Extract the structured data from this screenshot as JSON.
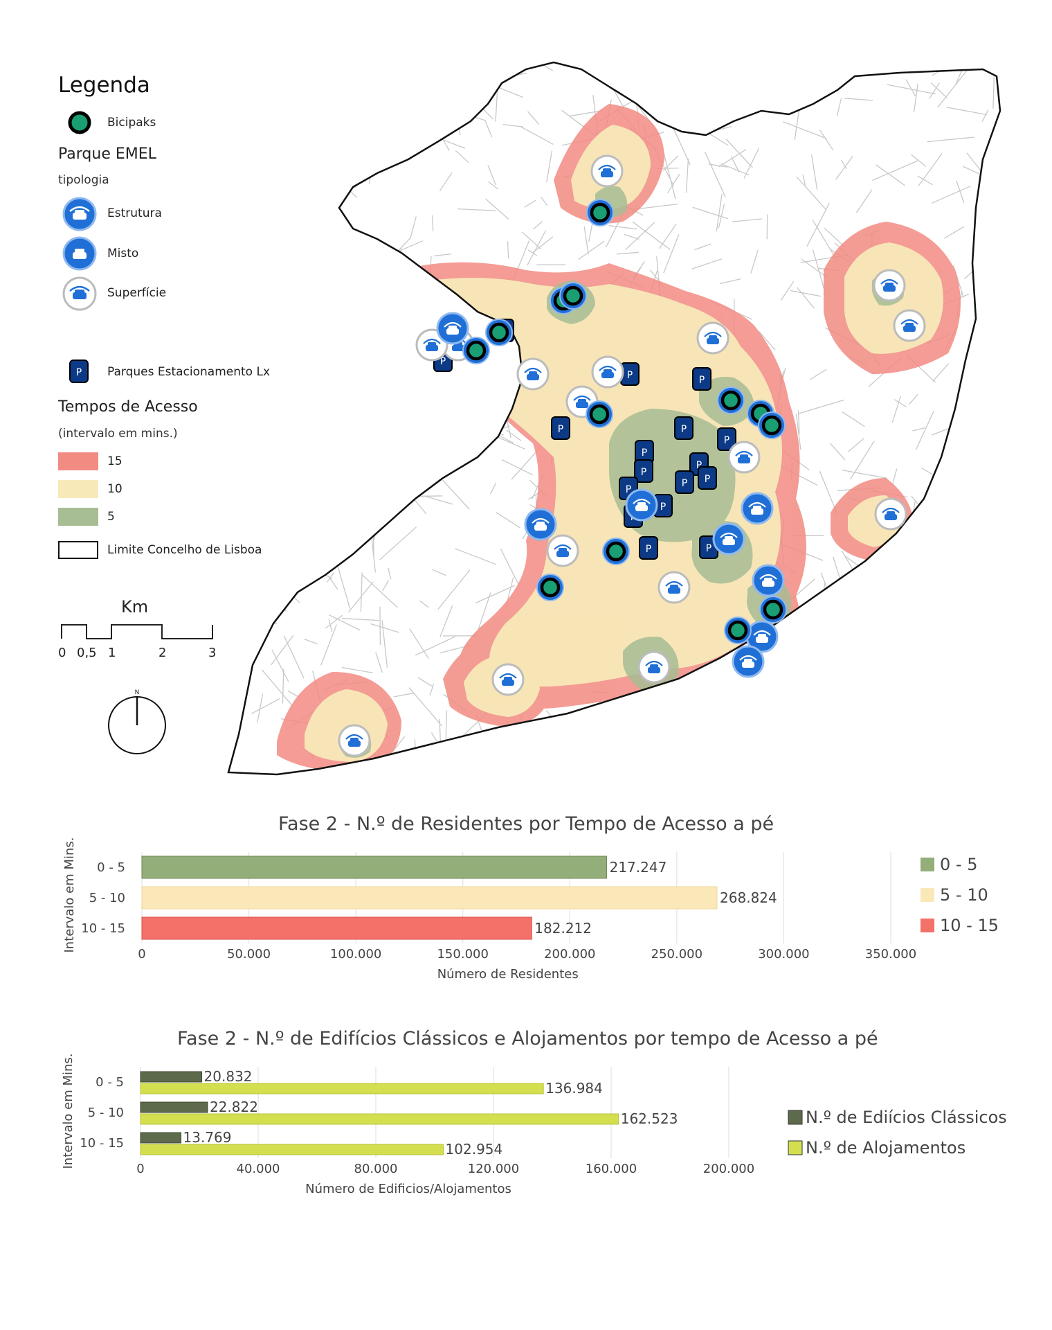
{
  "legend": {
    "title": "Legenda",
    "bicipaks": "Bicipaks",
    "parque_emel": "Parque EMEL",
    "tipologia": "tipologia",
    "estrutura": "Estrutura",
    "misto": "Misto",
    "superficie": "Superfície",
    "parques_lx": "Parques Estacionamento Lx",
    "tempos": "Tempos de Acesso",
    "intervalo": "(intervalo em mins.)",
    "t15": "15",
    "t10": "10",
    "t5": "5",
    "limite": "Limite Concelho de Lisboa",
    "parking_letter": "P"
  },
  "scale": {
    "unit": "Km",
    "ticks": [
      "0",
      "0,5",
      "1",
      "2",
      "3"
    ]
  },
  "north_label": "N",
  "colors": {
    "zone15": "#f28b82",
    "zone10": "#f8e9b8",
    "zone5": "#a7bd94",
    "bicipak_fill": "#1a9e74",
    "emel_blue": "#1f6fd6",
    "parking_navy": "#0d3a86",
    "roads": "#c8c8c8"
  },
  "chart_data": [
    {
      "type": "bar",
      "title": "Fase 2 - N.º de Residentes por Tempo de Acesso a pé",
      "categories": [
        "0 - 5",
        "5 - 10",
        "10 - 15"
      ],
      "values": [
        217247,
        268824,
        182212
      ],
      "value_labels": [
        "217.247",
        "268.824",
        "182.212"
      ],
      "xlabel": "Número de Residentes",
      "ylabel": "Intervalo em Mins.",
      "xlim": [
        0,
        350000
      ],
      "xticks": [
        "0",
        "50.000",
        "100.000",
        "150.000",
        "200.000",
        "250.000",
        "300.000",
        "350.000"
      ],
      "legend": [
        "0 - 5",
        "5 - 10",
        "10 - 15"
      ],
      "colors": [
        "#93ae79",
        "#fbe8b9",
        "#f4716a"
      ],
      "legend_placement": "right"
    },
    {
      "type": "bar",
      "title": "Fase 2 - N.º de Edifícios Clássicos e Alojamentos por tempo de Acesso a pé",
      "categories": [
        "0 - 5",
        "5 - 10",
        "10 - 15"
      ],
      "series": [
        {
          "name": "N.º de Ediícios Clássicos",
          "values": [
            20832,
            22822,
            13769
          ],
          "labels": [
            "20.832",
            "22.822",
            "13.769"
          ],
          "color": "#5d6b4c"
        },
        {
          "name": "N.º de Alojamentos",
          "values": [
            136984,
            162523,
            102954
          ],
          "labels": [
            "136.984",
            "162.523",
            "102.954"
          ],
          "color": "#d3df4f"
        }
      ],
      "xlabel": "Número de Edificios/Alojamentos",
      "ylabel": "Intervalo em Mins.",
      "xlim": [
        0,
        200000
      ],
      "xticks": [
        "0",
        "40.000",
        "80.000",
        "120.000",
        "160.000",
        "200.000"
      ],
      "legend_placement": "right"
    }
  ]
}
